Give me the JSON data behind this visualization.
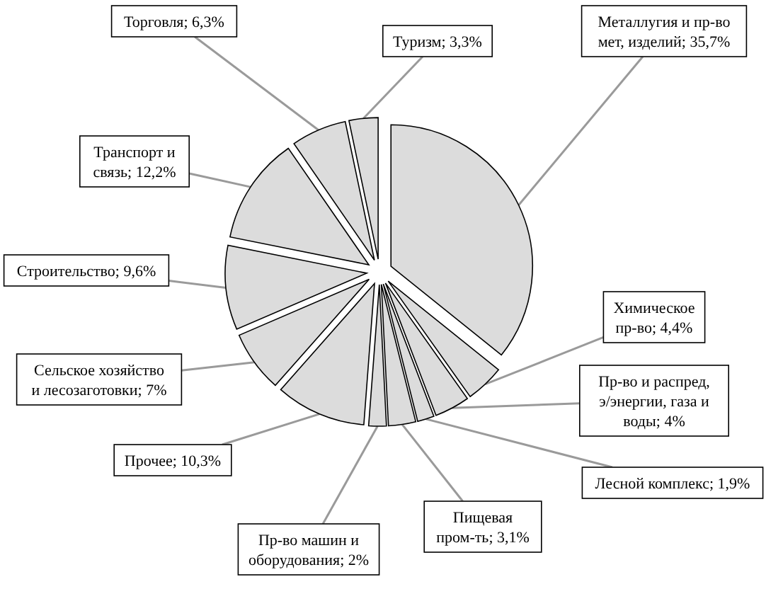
{
  "chart_data": {
    "type": "pie",
    "categories": [
      "Металлугия и пр-во мет, изделий",
      "Химическое пр-во",
      "Пр-во и распред, э/энергии, газа и воды",
      "Лесной комплекс",
      "Пищевая пром-ть",
      "Пр-во машин и оборудования",
      "Прочее",
      "Сельское хозяйство и лесозаготовки",
      "Строительство",
      "Транспорт и связь",
      "Торговля",
      "Туризм"
    ],
    "values": [
      35.7,
      4.4,
      4,
      1.9,
      3.1,
      2,
      10.3,
      7,
      9.6,
      12.2,
      6.3,
      3.3
    ],
    "value_labels": [
      "35,7%",
      "4,4%",
      "4%",
      "1,9%",
      "3,1%",
      "2%",
      "10,3%",
      "7%",
      "9,6%",
      "12,2%",
      "6,3%",
      "3,3%"
    ],
    "colors": [
      "#dcdcdc",
      "#dcdcdc",
      "#dcdcdc",
      "#dcdcdc",
      "#dcdcdc",
      "#dcdcdc",
      "#dcdcdc",
      "#dcdcdc",
      "#dcdcdc",
      "#dcdcdc",
      "#dcdcdc",
      "#dcdcdc"
    ]
  }
}
